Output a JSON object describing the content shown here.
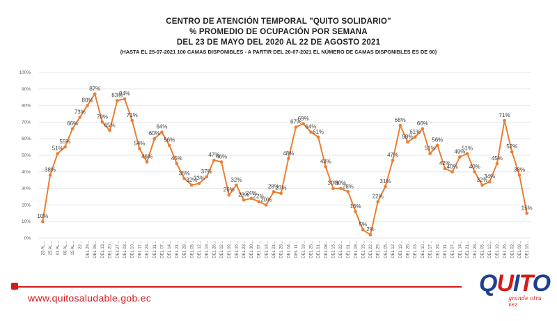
{
  "header": {
    "line1": "CENTRO DE ATENCIÓN TEMPORAL \"QUITO SOLIDARIO\"",
    "line2": "%  PROMEDIO DE OCUPACIÓN POR SEMANA",
    "line3": "DEL 23 DE MAYO DEL  2020 AL 22 DE AGOSTO 2021",
    "note": "(HASTA EL 25-07-2021 100 CAMAS DISPONIBLES - A PARTIR DEL 26-07-2021 EL NÚMERO DE CAMAS DISPONIBLES ES DE 60)"
  },
  "footer": {
    "url": "www.quitosaludable.gob.ec"
  },
  "logo": {
    "text": "QUITO",
    "tagline": "grande otra vez"
  },
  "colors": {
    "line": "#ed7d31",
    "grid": "#e6e6e6",
    "axis_text": "#595959",
    "brand_red": "#d51a1a",
    "brand_blue": "#1f3f8f"
  },
  "chart_data": {
    "type": "line",
    "ylim": [
      0,
      100
    ],
    "yticks": [
      "0%",
      "10%",
      "20%",
      "30%",
      "40%",
      "50%",
      "60%",
      "70%",
      "80%",
      "90%",
      "100%"
    ],
    "grid": true,
    "legend": "none",
    "categories": [
      "23 AL...",
      "25 AL...",
      "01 AL...",
      "08 AL...",
      "15 AL...",
      "22...",
      "DEL 29...",
      "DEL 06...",
      "DEL 13...",
      "DEL 20...",
      "DEL 27...",
      "DEL 03...",
      "DEL 10...",
      "DEL 17...",
      "DEL 24...",
      "DEL 31...",
      "DEL 07...",
      "DEL 14...",
      "DEL 21...",
      "DEL 28...",
      "DEL 05...",
      "DEL 12...",
      "DEL 19...",
      "DEL 26...",
      "DEL 02...",
      "DEL 09...",
      "DEL 16...",
      "DEL 23...",
      "DEL 30...",
      "DEL 07...",
      "DEL 14...",
      "DEL 21...",
      "DEL 28...",
      "DEL 04...",
      "DEL 11...",
      "DEL 18...",
      "DEL 25...",
      "DEL 01...",
      "DEL 08...",
      "DEL 15...",
      "DEL 22...",
      "DEL 01...",
      "DEL 08...",
      "DEL 15...",
      "DEL 22...",
      "DEL 29...",
      "DEL 05...",
      "DEL 12...",
      "DEL 19...",
      "DEL 26...",
      "DEL 03...",
      "DEL 10...",
      "DEL 17...",
      "DEL 24...",
      "DEL 31...",
      "DEL 07...",
      "DEL 14...",
      "DEL 21...",
      "DEL 28...",
      "DEL 05...",
      "DEL 12...",
      "DEL 19...",
      "DEL 26...",
      "DEL 02...",
      "DEL 09...",
      "DEL 16..."
    ],
    "values": [
      10,
      38,
      51,
      55,
      66,
      73,
      80,
      87,
      70,
      65,
      83,
      84,
      71,
      54,
      46,
      60,
      64,
      56,
      45,
      36,
      32,
      33,
      37,
      47,
      46,
      26,
      32,
      23,
      24,
      22,
      20,
      28,
      27,
      48,
      67,
      69,
      64,
      61,
      43,
      30,
      30,
      28,
      16,
      5,
      2,
      22,
      31,
      47,
      68,
      58,
      61,
      66,
      51,
      56,
      42,
      40,
      49,
      51,
      40,
      32,
      34,
      45,
      71,
      52,
      38,
      15
    ],
    "labels": [
      "10%",
      "38%",
      "51%",
      "55%",
      "66%",
      "73%",
      "80%",
      "87%",
      "70%",
      "65%",
      "83%",
      "84%",
      "71%",
      "54%",
      "46%",
      "60%",
      "64%",
      "56%",
      "45%",
      "36%",
      "32%",
      "33%",
      "37%",
      "47%",
      "46%",
      "26%",
      "32%",
      "23%",
      "24%",
      "22%",
      "20%",
      "28%",
      "27%",
      "48%",
      "67%",
      "69%",
      "64%",
      "61%",
      "43%",
      "30%",
      "30%",
      "28%",
      "16%",
      "5%",
      "2%",
      "22%",
      "31%",
      "47%",
      "68%",
      "58%",
      "61%",
      "66%",
      "51%",
      "56%",
      "42%",
      "40%",
      "49%",
      "51%",
      "40%",
      "32%",
      "34%",
      "45%",
      "71%",
      "52%",
      "38%",
      "15%"
    ]
  }
}
